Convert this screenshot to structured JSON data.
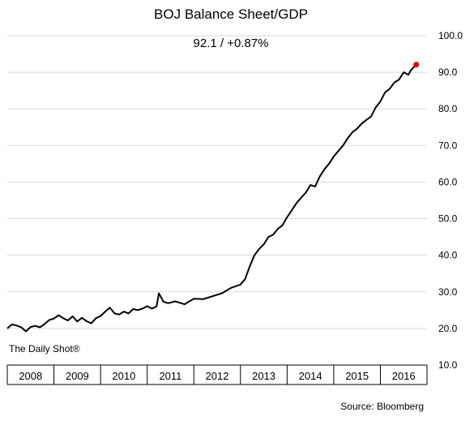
{
  "chart_data": {
    "type": "line",
    "title": "BOJ Balance Sheet/GDP",
    "subtitle": "92.1  /  +0.87%",
    "xlabel": "",
    "ylabel": "",
    "x_categories": [
      "2008",
      "2009",
      "2010",
      "2011",
      "2012",
      "2013",
      "2014",
      "2015",
      "2016"
    ],
    "ylim": [
      10.0,
      100.0
    ],
    "y_ticks": [
      "10.0",
      "20.0",
      "30.0",
      "40.0",
      "50.0",
      "60.0",
      "70.0",
      "80.0",
      "90.0",
      "100.0"
    ],
    "grid": true,
    "y_axis_position": "right",
    "series": [
      {
        "color": "#000000",
        "points": [
          [
            2008.0,
            20.0
          ],
          [
            2008.1,
            21.1
          ],
          [
            2008.2,
            20.8
          ],
          [
            2008.3,
            20.3
          ],
          [
            2008.4,
            19.2
          ],
          [
            2008.5,
            20.4
          ],
          [
            2008.6,
            20.7
          ],
          [
            2008.7,
            20.3
          ],
          [
            2008.8,
            21.2
          ],
          [
            2008.9,
            22.3
          ],
          [
            2009.0,
            22.7
          ],
          [
            2009.1,
            23.6
          ],
          [
            2009.2,
            22.8
          ],
          [
            2009.3,
            22.2
          ],
          [
            2009.4,
            23.3
          ],
          [
            2009.5,
            21.9
          ],
          [
            2009.6,
            22.9
          ],
          [
            2009.7,
            22.0
          ],
          [
            2009.8,
            21.4
          ],
          [
            2009.9,
            22.8
          ],
          [
            2010.0,
            23.4
          ],
          [
            2010.1,
            24.6
          ],
          [
            2010.2,
            25.7
          ],
          [
            2010.3,
            24.1
          ],
          [
            2010.4,
            23.8
          ],
          [
            2010.5,
            24.6
          ],
          [
            2010.6,
            24.1
          ],
          [
            2010.7,
            25.3
          ],
          [
            2010.8,
            25.0
          ],
          [
            2010.9,
            25.4
          ],
          [
            2011.0,
            26.1
          ],
          [
            2011.1,
            25.4
          ],
          [
            2011.2,
            26.0
          ],
          [
            2011.25,
            29.6
          ],
          [
            2011.35,
            27.3
          ],
          [
            2011.45,
            26.9
          ],
          [
            2011.6,
            27.4
          ],
          [
            2011.8,
            26.6
          ],
          [
            2012.0,
            28.1
          ],
          [
            2012.2,
            28.0
          ],
          [
            2012.4,
            28.8
          ],
          [
            2012.6,
            29.6
          ],
          [
            2012.8,
            31.1
          ],
          [
            2013.0,
            32.0
          ],
          [
            2013.1,
            33.5
          ],
          [
            2013.2,
            37.0
          ],
          [
            2013.3,
            40.0
          ],
          [
            2013.4,
            41.7
          ],
          [
            2013.5,
            43.0
          ],
          [
            2013.6,
            45.0
          ],
          [
            2013.7,
            45.6
          ],
          [
            2013.8,
            47.2
          ],
          [
            2013.9,
            48.2
          ],
          [
            2014.0,
            50.4
          ],
          [
            2014.1,
            52.3
          ],
          [
            2014.2,
            54.2
          ],
          [
            2014.3,
            55.7
          ],
          [
            2014.4,
            57.1
          ],
          [
            2014.5,
            59.2
          ],
          [
            2014.6,
            58.8
          ],
          [
            2014.7,
            61.5
          ],
          [
            2014.8,
            63.5
          ],
          [
            2014.9,
            65.0
          ],
          [
            2015.0,
            67.0
          ],
          [
            2015.1,
            68.5
          ],
          [
            2015.2,
            70.0
          ],
          [
            2015.3,
            72.0
          ],
          [
            2015.4,
            73.6
          ],
          [
            2015.5,
            74.6
          ],
          [
            2015.6,
            76.0
          ],
          [
            2015.7,
            77.0
          ],
          [
            2015.8,
            77.9
          ],
          [
            2015.9,
            80.4
          ],
          [
            2016.0,
            82.0
          ],
          [
            2016.1,
            84.5
          ],
          [
            2016.2,
            85.5
          ],
          [
            2016.3,
            87.2
          ],
          [
            2016.4,
            88.0
          ],
          [
            2016.5,
            90.0
          ],
          [
            2016.6,
            89.3
          ],
          [
            2016.65,
            90.5
          ],
          [
            2016.7,
            91.2
          ],
          [
            2016.77,
            92.1
          ]
        ]
      }
    ],
    "last_point_marker_color": "#dd0000",
    "watermark": "The Daily Shot®",
    "source": "Source: Bloomberg"
  }
}
